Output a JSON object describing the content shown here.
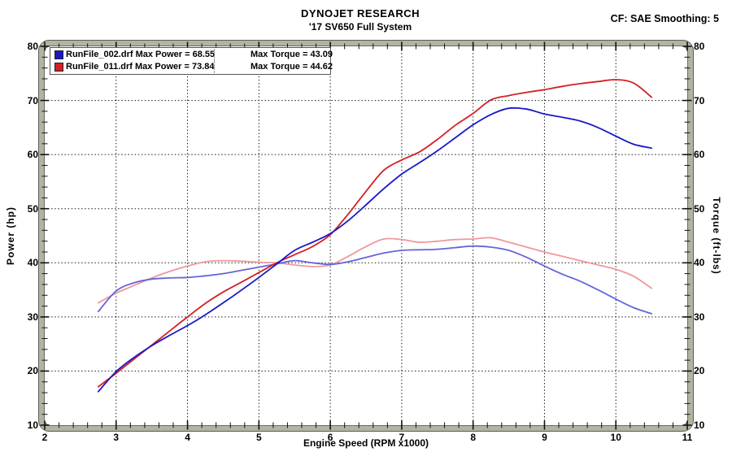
{
  "header": {
    "title": "DYNOJET RESEARCH",
    "subtitle": "'17 SV650 Full System",
    "cf_label": "CF: SAE  Smoothing: 5"
  },
  "legend": {
    "entries": [
      {
        "color": "#1818c8",
        "label": "RunFile_002.drf Max Power = 68.55",
        "torque_label": "Max Torque = 43.09"
      },
      {
        "color": "#d42024",
        "label": "RunFile_011.drf Max Power = 73.84",
        "torque_label": "Max Torque = 44.62"
      }
    ]
  },
  "chart_data": {
    "type": "line",
    "title": "DYNOJET RESEARCH",
    "subtitle": "'17 SV650 Full System",
    "annotation": "CF: SAE  Smoothing: 5",
    "xlabel": "Engine Speed (RPM x1000)",
    "ylabel_left": "Power (hp)",
    "ylabel_right": "Torque (ft-lbs)",
    "xlim": [
      2,
      11
    ],
    "ylim": [
      10,
      80
    ],
    "x_ticks": [
      2,
      3,
      4,
      5,
      6,
      7,
      8,
      9,
      10,
      11
    ],
    "y_ticks": [
      10,
      20,
      30,
      40,
      50,
      60,
      70,
      80
    ],
    "x_minor_step": 0.2,
    "y_minor_step": 2,
    "grid": "dotted",
    "legend_position": "top-left",
    "x": [
      2.75,
      3.0,
      3.25,
      3.5,
      3.75,
      4.0,
      4.25,
      4.5,
      4.75,
      5.0,
      5.25,
      5.5,
      5.75,
      6.0,
      6.25,
      6.5,
      6.75,
      7.0,
      7.25,
      7.5,
      7.75,
      8.0,
      8.25,
      8.5,
      8.75,
      9.0,
      9.25,
      9.5,
      9.75,
      10.0,
      10.25,
      10.5
    ],
    "series": [
      {
        "name": "RunFile_002 Power (hp)",
        "color": "#1818c8",
        "max": 68.55,
        "values": [
          16.2,
          19.9,
          22.5,
          24.7,
          26.6,
          28.4,
          30.4,
          32.6,
          34.9,
          37.3,
          39.8,
          42.3,
          43.8,
          45.4,
          47.8,
          50.7,
          53.7,
          56.4,
          58.5,
          60.7,
          63.1,
          65.5,
          67.4,
          68.55,
          68.4,
          67.5,
          66.9,
          66.2,
          65.0,
          63.4,
          61.9,
          61.2
        ]
      },
      {
        "name": "RunFile_011 Power (hp)",
        "color": "#d42024",
        "max": 73.84,
        "values": [
          17.1,
          19.6,
          22.2,
          24.8,
          27.4,
          30.0,
          32.5,
          34.6,
          36.4,
          38.2,
          40.0,
          41.5,
          43.0,
          45.2,
          49.0,
          53.2,
          57.1,
          59.0,
          60.5,
          62.8,
          65.4,
          67.6,
          70.1,
          70.9,
          71.5,
          72.0,
          72.6,
          73.1,
          73.5,
          73.84,
          73.2,
          70.6
        ]
      },
      {
        "name": "RunFile_002 Torque (ft-lbs)",
        "color": "#6464dc",
        "max": 43.09,
        "values": [
          31.0,
          34.8,
          36.3,
          37.0,
          37.2,
          37.3,
          37.6,
          38.0,
          38.6,
          39.2,
          39.8,
          40.4,
          40.0,
          39.7,
          40.2,
          41.0,
          41.8,
          42.3,
          42.4,
          42.5,
          42.8,
          43.09,
          42.9,
          42.3,
          41.0,
          39.4,
          37.9,
          36.6,
          35.0,
          33.3,
          31.7,
          30.6
        ]
      },
      {
        "name": "RunFile_011 Torque (ft-lbs)",
        "color": "#f0989c",
        "max": 44.62,
        "values": [
          32.6,
          34.4,
          35.8,
          37.2,
          38.4,
          39.4,
          40.2,
          40.4,
          40.3,
          40.1,
          40.0,
          39.6,
          39.3,
          39.6,
          41.2,
          43.0,
          44.4,
          44.3,
          43.8,
          44.0,
          44.3,
          44.4,
          44.62,
          43.8,
          42.9,
          42.0,
          41.2,
          40.4,
          39.6,
          38.8,
          37.5,
          35.3
        ]
      }
    ],
    "frame_color": "#b3b3a3",
    "grid_color": "#1a1a1a"
  }
}
